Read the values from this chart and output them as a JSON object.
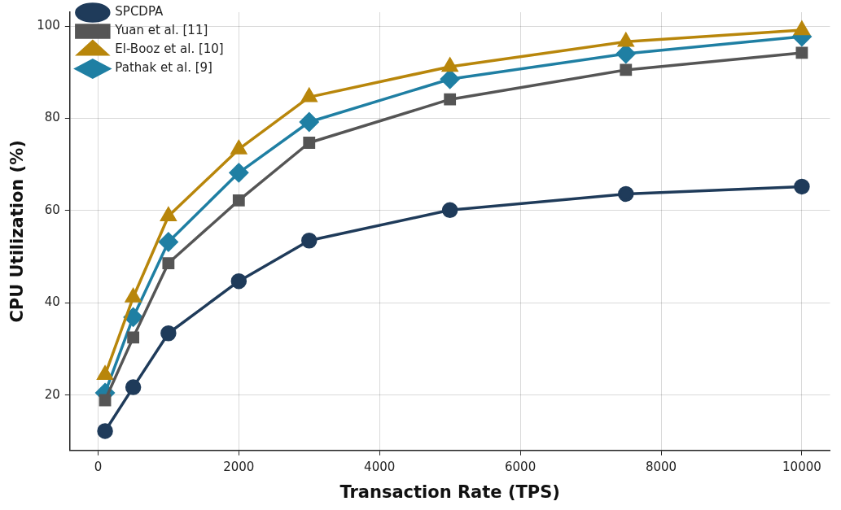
{
  "chart_data": {
    "type": "line",
    "xlabel": "Transaction Rate (TPS)",
    "ylabel": "CPU Utilization (%)",
    "x": [
      100,
      500,
      1000,
      2000,
      3000,
      5000,
      7500,
      10000
    ],
    "series": [
      {
        "name": "SPCDPA",
        "color": "#1f3b5a",
        "marker": "circle",
        "values": [
          12.2,
          21.7,
          33.4,
          44.7,
          53.5,
          60.1,
          63.6,
          65.2
        ]
      },
      {
        "name": "Yuan et al. [11]",
        "color": "#555555",
        "marker": "square",
        "values": [
          18.9,
          32.5,
          48.6,
          62.2,
          74.7,
          84.1,
          90.5,
          94.2
        ]
      },
      {
        "name": "El-Booz et al. [10]",
        "color": "#b8860b",
        "marker": "triangle",
        "values": [
          24.4,
          41.2,
          58.8,
          73.3,
          84.6,
          91.2,
          96.6,
          99.1
        ]
      },
      {
        "name": "Pathak et al. [9]",
        "color": "#1f7fa3",
        "marker": "diamond",
        "values": [
          20.5,
          36.9,
          53.2,
          68.2,
          79.2,
          88.5,
          94.0,
          97.7
        ]
      }
    ],
    "xlim": [
      -400,
      10400
    ],
    "ylim": [
      8,
      103
    ],
    "xticks": [
      0,
      2000,
      4000,
      6000,
      8000,
      10000
    ],
    "yticks": [
      20,
      40,
      60,
      80,
      100
    ],
    "grid": true,
    "legend": "top left",
    "line_style": "solid"
  }
}
